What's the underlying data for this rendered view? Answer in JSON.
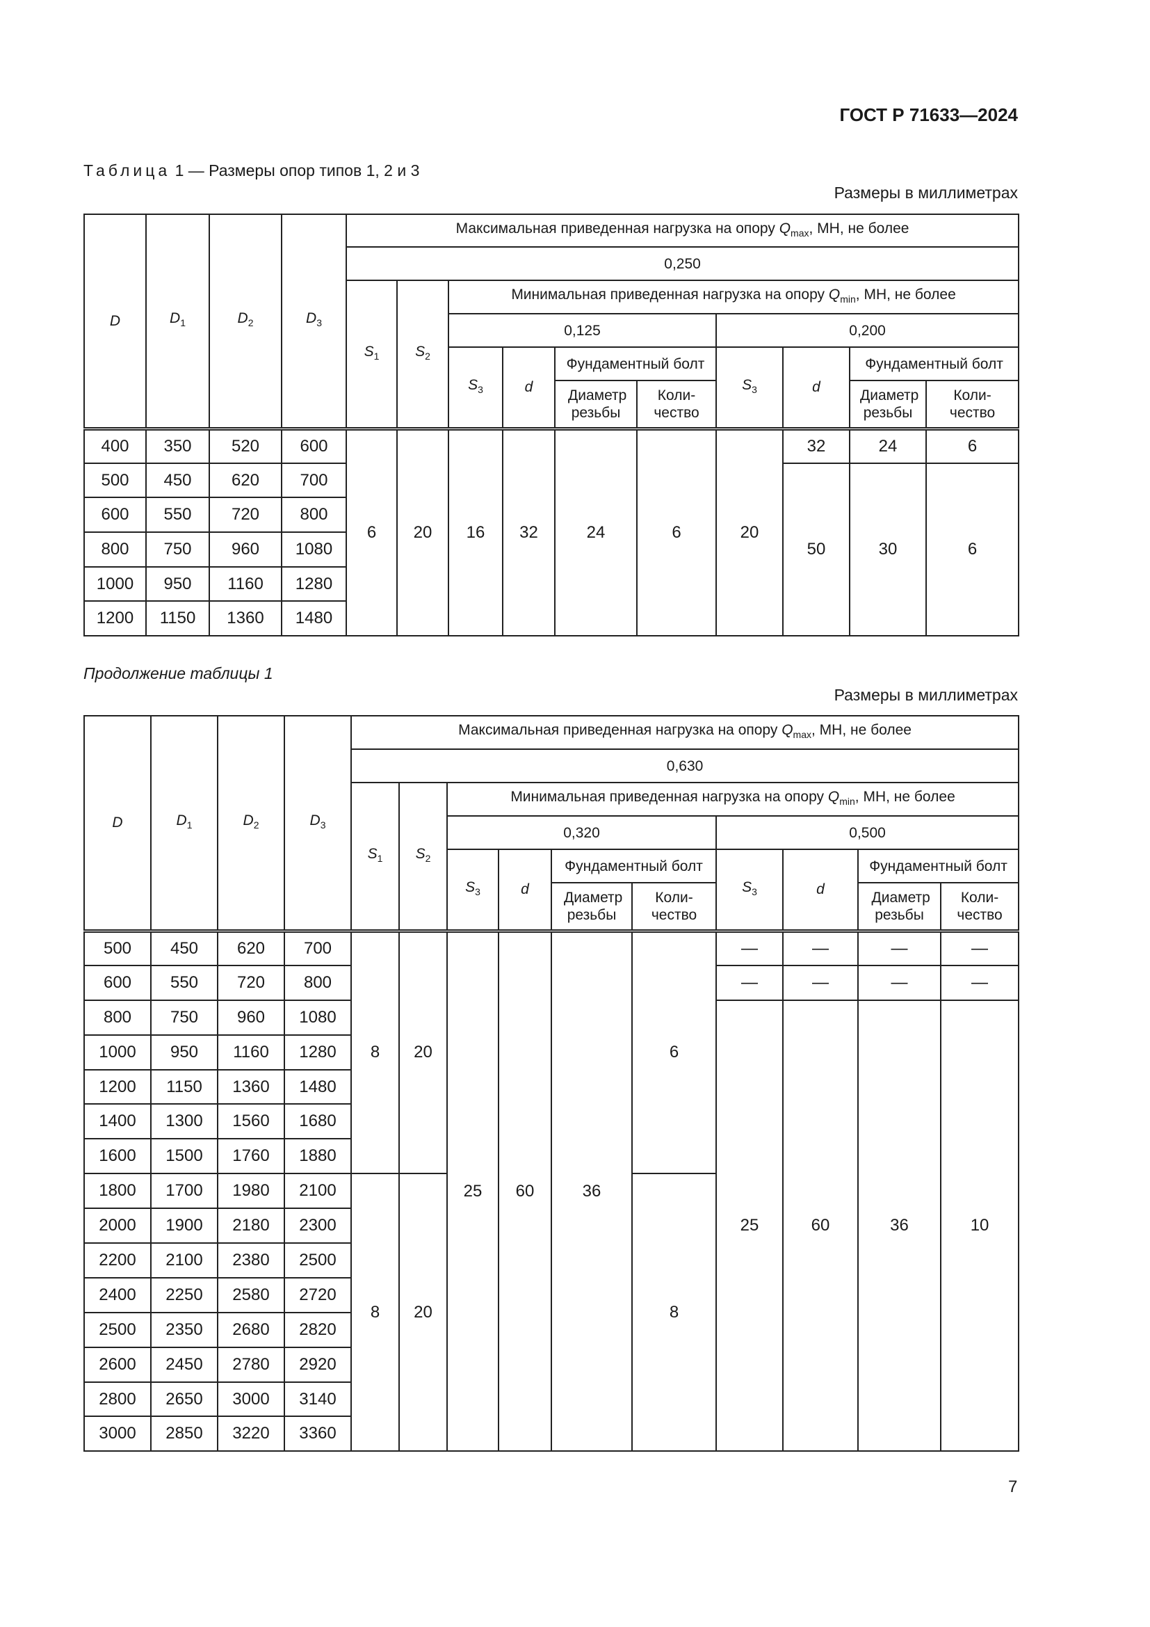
{
  "document_code": "ГОСТ Р 71633—2024",
  "caption": {
    "prefix": "Таблица",
    "text": "1 — Размеры опор типов 1, 2 и 3"
  },
  "units_note": "Размеры в миллиметрах",
  "continuation": "Продолжение таблицы 1",
  "page_number": "7",
  "headers": {
    "D": "D",
    "D1": {
      "base": "D",
      "sub": "1"
    },
    "D2": {
      "base": "D",
      "sub": "2"
    },
    "D3": {
      "base": "D",
      "sub": "3"
    },
    "S1": {
      "base": "S",
      "sub": "1"
    },
    "S2": {
      "base": "S",
      "sub": "2"
    },
    "S3": {
      "base": "S",
      "sub": "3"
    },
    "d": "d",
    "qmax": {
      "pre": "Максимальная приведенная нагрузка на опору ",
      "q": "Q",
      "sub": "max",
      "post": ", МН, не более"
    },
    "qmin": {
      "pre": "Минимальная приведенная нагрузка на опору ",
      "q": "Q",
      "sub": "min",
      "post": ", МН, не более"
    },
    "bolt": "Фундаментный болт",
    "thread_diameter": "Диаметр резьбы",
    "quantity": "Коли-чество"
  },
  "table1": {
    "qmax_value": "0,250",
    "qmin_values": [
      "0,125",
      "0,200"
    ],
    "rows": [
      {
        "dims": [
          "400",
          "350",
          "520",
          "600"
        ],
        "cells": [
          "6",
          "20",
          "16",
          "32",
          "24",
          "6",
          "20",
          "32",
          "24",
          "6"
        ]
      },
      {
        "dims": [
          "500",
          "450",
          "620",
          "700"
        ],
        "cells": [
          "50",
          "30",
          "6"
        ]
      },
      {
        "dims": [
          "600",
          "550",
          "720",
          "800"
        ],
        "cells": []
      },
      {
        "dims": [
          "800",
          "750",
          "960",
          "1080"
        ],
        "cells": []
      },
      {
        "dims": [
          "1000",
          "950",
          "1160",
          "1280"
        ],
        "cells": []
      },
      {
        "dims": [
          "1200",
          "1150",
          "1360",
          "1480"
        ],
        "cells": []
      }
    ]
  },
  "table2": {
    "qmax_value": "0,630",
    "qmin_values": [
      "0,320",
      "0,500"
    ],
    "rows": [
      {
        "dims": [
          "500",
          "450",
          "620",
          "700"
        ],
        "cells": [
          "8",
          "20",
          "25",
          "60",
          "36",
          "6",
          "—",
          "—",
          "—",
          "—"
        ]
      },
      {
        "dims": [
          "600",
          "550",
          "720",
          "800"
        ],
        "cells": [
          "—",
          "—",
          "—",
          "—"
        ]
      },
      {
        "dims": [
          "800",
          "750",
          "960",
          "1080"
        ],
        "cells": [
          "25",
          "60",
          "36",
          "10"
        ]
      },
      {
        "dims": [
          "1000",
          "950",
          "1160",
          "1280"
        ],
        "cells": []
      },
      {
        "dims": [
          "1200",
          "1150",
          "1360",
          "1480"
        ],
        "cells": []
      },
      {
        "dims": [
          "1400",
          "1300",
          "1560",
          "1680"
        ],
        "cells": []
      },
      {
        "dims": [
          "1600",
          "1500",
          "1760",
          "1880"
        ],
        "cells": []
      },
      {
        "dims": [
          "1800",
          "1700",
          "1980",
          "2100"
        ],
        "cells": [
          "8",
          "20",
          "8"
        ]
      },
      {
        "dims": [
          "2000",
          "1900",
          "2180",
          "2300"
        ],
        "cells": []
      },
      {
        "dims": [
          "2200",
          "2100",
          "2380",
          "2500"
        ],
        "cells": []
      },
      {
        "dims": [
          "2400",
          "2250",
          "2580",
          "2720"
        ],
        "cells": []
      },
      {
        "dims": [
          "2500",
          "2350",
          "2680",
          "2820"
        ],
        "cells": []
      },
      {
        "dims": [
          "2600",
          "2450",
          "2780",
          "2920"
        ],
        "cells": []
      },
      {
        "dims": [
          "2800",
          "2650",
          "3000",
          "3140"
        ],
        "cells": []
      },
      {
        "dims": [
          "3000",
          "2850",
          "3220",
          "3360"
        ],
        "cells": []
      }
    ]
  }
}
